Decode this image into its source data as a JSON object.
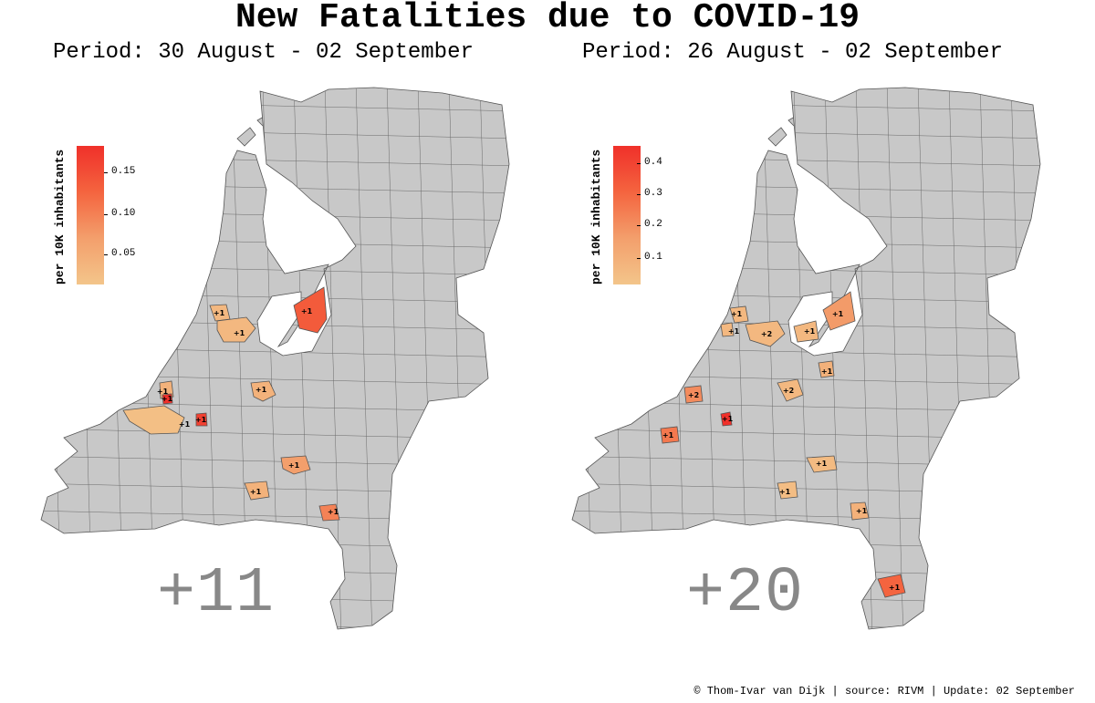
{
  "title": "New Fatalities due to COVID-19",
  "panels": [
    {
      "subtitle": "Period: 30 August - 02 September",
      "legend_title": "per 10K inhabitants",
      "legend_ticks": [
        "0.15",
        "0.10",
        "0.05"
      ],
      "legend_range": [
        0.0,
        0.18
      ],
      "total": "+11",
      "highlights": [
        {
          "label": "+1",
          "value": 0.02
        },
        {
          "label": "+1",
          "value": 0.02
        },
        {
          "label": "+1",
          "value": 0.13
        },
        {
          "label": "+1",
          "value": 0.03
        },
        {
          "label": "+1",
          "value": 0.18
        },
        {
          "label": "+1",
          "value": 0.01
        },
        {
          "label": "+1",
          "value": 0.16
        },
        {
          "label": "+1",
          "value": 0.03
        },
        {
          "label": "+1",
          "value": 0.06
        },
        {
          "label": "+1",
          "value": 0.03
        },
        {
          "label": "+1",
          "value": 0.09
        }
      ]
    },
    {
      "subtitle": "Period: 26 August - 02 September",
      "legend_title": "per 10K inhabitants",
      "legend_ticks": [
        "0.4",
        "0.3",
        "0.2",
        "0.1"
      ],
      "legend_range": [
        0.0,
        0.45
      ],
      "total": "+20",
      "highlights": [
        {
          "label": "+1",
          "value": 0.05
        },
        {
          "label": "+1",
          "value": 0.05
        },
        {
          "label": "+2",
          "value": 0.05
        },
        {
          "label": "+1",
          "value": 0.05
        },
        {
          "label": "+1",
          "value": 0.16
        },
        {
          "label": "+1",
          "value": 0.08
        },
        {
          "label": "+2",
          "value": 0.05
        },
        {
          "label": "+2",
          "value": 0.2
        },
        {
          "label": "+1",
          "value": 0.45
        },
        {
          "label": "+1",
          "value": 0.25
        },
        {
          "label": "+1",
          "value": 0.04
        },
        {
          "label": "+1",
          "value": 0.03
        },
        {
          "label": "+1",
          "value": 0.08
        },
        {
          "label": "+1",
          "value": 0.3
        }
      ]
    }
  ],
  "footer": "© Thom-Ivar van Dijk | source: RIVM | Update: 02 September"
}
